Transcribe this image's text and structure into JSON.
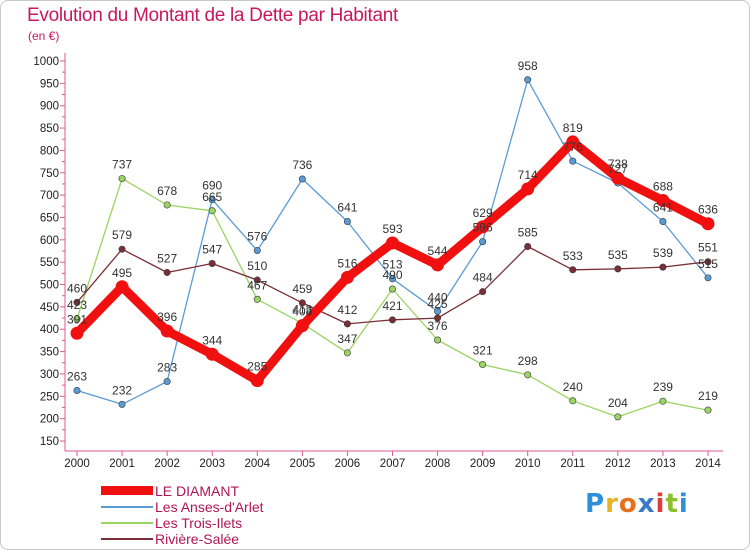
{
  "title": "Evolution du Montant de la Dette par Habitant",
  "subtitle": "(en €)",
  "brand": {
    "text": "Proxiti",
    "letter_colors": [
      "#2f8fd8",
      "#e8b222",
      "#e86f1e",
      "#3a79c8",
      "#e03c3c",
      "#8dbf2e",
      "#2f8fd8"
    ]
  },
  "chart_data": {
    "type": "line",
    "x": [
      2000,
      2001,
      2002,
      2003,
      2004,
      2005,
      2006,
      2007,
      2008,
      2009,
      2010,
      2011,
      2012,
      2013,
      2014
    ],
    "y_ticks": [
      150,
      200,
      250,
      300,
      350,
      400,
      450,
      500,
      550,
      600,
      650,
      700,
      750,
      800,
      850,
      900,
      950,
      1000
    ],
    "ylim": [
      150,
      1000
    ],
    "grid": false,
    "legend_position": "bottom-left",
    "series": [
      {
        "name": "Les Anses-d'Arlet",
        "color": "#5b9bd5",
        "values": [
          263,
          232,
          283,
          690,
          576,
          736,
          641,
          513,
          440,
          596,
          958,
          776,
          727,
          641,
          515
        ],
        "labels": [
          "263",
          "232",
          "283",
          "690",
          "576",
          "736",
          "641",
          "513",
          "440",
          "596",
          "958",
          "776",
          "727",
          "641",
          "515"
        ]
      },
      {
        "name": "Les Trois-Ilets",
        "color": "#9ad461",
        "values": [
          423,
          737,
          678,
          665,
          467,
          413,
          347,
          490,
          376,
          321,
          298,
          240,
          204,
          239,
          219
        ],
        "labels": [
          "423",
          "737",
          "678",
          "665",
          "467",
          "413",
          "347",
          "490",
          "376",
          "321",
          "298",
          "240",
          "204",
          "239",
          "219"
        ]
      },
      {
        "name": "Rivière-Salée",
        "color": "#7a2e35",
        "values": [
          460,
          579,
          527,
          547,
          510,
          459,
          412,
          421,
          425,
          484,
          585,
          533,
          535,
          539,
          551
        ],
        "labels": [
          "460",
          "579",
          "527",
          "547",
          "510",
          "459",
          "412",
          "421",
          "425",
          "484",
          "585",
          "533",
          "535",
          "539",
          "551"
        ]
      },
      {
        "name": "LE DIAMANT",
        "color": "#f01010",
        "values": [
          391,
          495,
          396,
          344,
          285,
          408,
          516,
          593,
          544,
          629,
          714,
          819,
          738,
          688,
          636
        ],
        "labels": [
          "391",
          "495",
          "396",
          "344",
          "285",
          "408",
          "516",
          "593",
          "544",
          "629",
          "714",
          "819",
          "738",
          "688",
          "636"
        ]
      }
    ],
    "legend": [
      {
        "name": "LE DIAMANT",
        "color": "#f01010",
        "thick": true
      },
      {
        "name": "Les Anses-d'Arlet",
        "color": "#5b9bd5",
        "thick": false
      },
      {
        "name": "Les Trois-Ilets",
        "color": "#9ad461",
        "thick": false
      },
      {
        "name": "Rivière-Salée",
        "color": "#7a2e35",
        "thick": false
      }
    ]
  }
}
